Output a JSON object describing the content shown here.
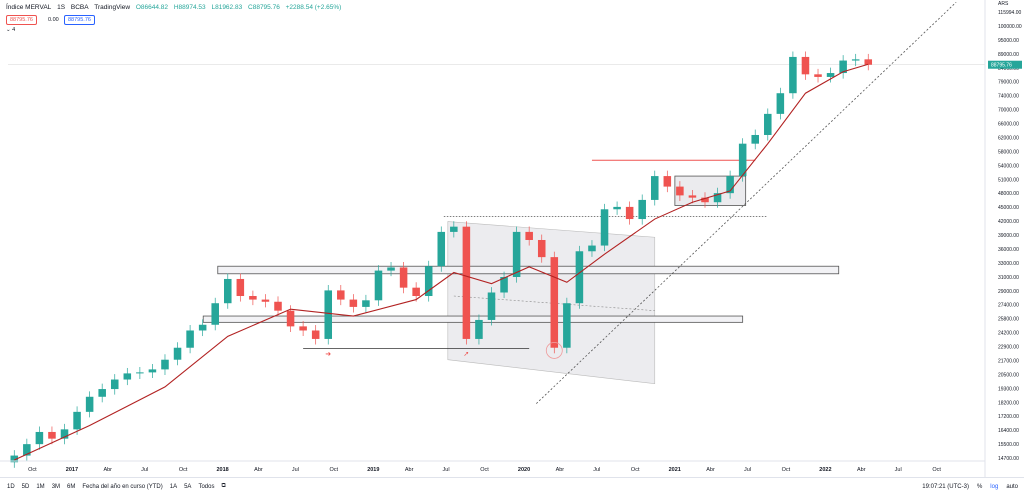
{
  "header": {
    "symbol": "Índice MERVAL",
    "interval": "1S",
    "exchange": "BCBA",
    "source": "TradingView",
    "open": "O86644.82",
    "high": "H88974.53",
    "low": "L81962.83",
    "close": "C88795.76",
    "change": "+2288.54 (+2.65%)",
    "bid": "88795.76",
    "spread": "0.00",
    "ask": "88795.76",
    "indicator_count": "4"
  },
  "price_axis": {
    "top_label": "ARS",
    "last_price_label": "88795.76",
    "labels": [
      "115994.00",
      "100000.00",
      "95000.00",
      "89000.00",
      "84000.00",
      "79000.00",
      "74000.00",
      "70000.00",
      "66000.00",
      "62000.00",
      "58000.00",
      "54000.00",
      "51000.00",
      "48000.00",
      "45000.00",
      "42000.00",
      "39000.00",
      "36000.00",
      "33000.00",
      "31000.00",
      "29000.00",
      "27400.00",
      "25800.00",
      "24200.00",
      "22900.00",
      "21700.00",
      "20500.00",
      "19300.00",
      "18200.00",
      "17200.00",
      "16400.00",
      "15500.00",
      "14700.00"
    ]
  },
  "time_axis": {
    "labels": [
      {
        "t": "Oct",
        "bold": false
      },
      {
        "t": "2017",
        "bold": true
      },
      {
        "t": "Abr",
        "bold": false
      },
      {
        "t": "Jul",
        "bold": false
      },
      {
        "t": "Oct",
        "bold": false
      },
      {
        "t": "2018",
        "bold": true
      },
      {
        "t": "Abr",
        "bold": false
      },
      {
        "t": "Jul",
        "bold": false
      },
      {
        "t": "Oct",
        "bold": false
      },
      {
        "t": "2019",
        "bold": true
      },
      {
        "t": "Abr",
        "bold": false
      },
      {
        "t": "Jul",
        "bold": false
      },
      {
        "t": "Oct",
        "bold": false
      },
      {
        "t": "2020",
        "bold": true
      },
      {
        "t": "Abr",
        "bold": false
      },
      {
        "t": "Jul",
        "bold": false
      },
      {
        "t": "Oct",
        "bold": false
      },
      {
        "t": "2021",
        "bold": true
      },
      {
        "t": "Abr",
        "bold": false
      },
      {
        "t": "Jul",
        "bold": false
      },
      {
        "t": "Oct",
        "bold": false
      },
      {
        "t": "2022",
        "bold": true
      },
      {
        "t": "Abr",
        "bold": false
      },
      {
        "t": "Jul",
        "bold": false
      },
      {
        "t": "Oct",
        "bold": false
      }
    ]
  },
  "bottom_bar": {
    "ranges": [
      "1D",
      "5D",
      "1M",
      "3M",
      "6M",
      "Fecha del año en curso (YTD)",
      "1A",
      "5A",
      "Todos"
    ],
    "clock": "19:07:21 (UTC-3)",
    "percent": "%",
    "log": "log",
    "auto": "auto"
  },
  "colors": {
    "up": "#26a69a",
    "down": "#ef5350",
    "ma": "#b22222",
    "zone_fill": "#e6e6ea",
    "hline": "#ef5350",
    "trend": "#555555"
  },
  "chart_data": {
    "type": "candlestick",
    "scale": "log",
    "x_range": [
      "2016-08",
      "2022-12"
    ],
    "y_range": [
      14700,
      115994
    ],
    "last_price": 88795.76,
    "series": [
      {
        "kind": "candles",
        "points": [
          {
            "x": "2016-08",
            "c": 15000
          },
          {
            "x": "2016-09",
            "c": 15800
          },
          {
            "x": "2016-10",
            "c": 16700
          },
          {
            "x": "2016-11",
            "c": 16200
          },
          {
            "x": "2016-12",
            "c": 16900
          },
          {
            "x": "2017-01",
            "c": 18300
          },
          {
            "x": "2017-02",
            "c": 19600
          },
          {
            "x": "2017-03",
            "c": 20300
          },
          {
            "x": "2017-04",
            "c": 21200
          },
          {
            "x": "2017-05",
            "c": 21800
          },
          {
            "x": "2017-06",
            "c": 21900
          },
          {
            "x": "2017-07",
            "c": 22200
          },
          {
            "x": "2017-08",
            "c": 23200
          },
          {
            "x": "2017-09",
            "c": 24500
          },
          {
            "x": "2017-10",
            "c": 26500
          },
          {
            "x": "2017-11",
            "c": 27200
          },
          {
            "x": "2017-12",
            "c": 30000
          },
          {
            "x": "2018-01",
            "c": 33500
          },
          {
            "x": "2018-02",
            "c": 31000
          },
          {
            "x": "2018-03",
            "c": 30500
          },
          {
            "x": "2018-04",
            "c": 30200
          },
          {
            "x": "2018-05",
            "c": 29000
          },
          {
            "x": "2018-06",
            "c": 27000
          },
          {
            "x": "2018-07",
            "c": 26500
          },
          {
            "x": "2018-08",
            "c": 25500
          },
          {
            "x": "2018-09",
            "c": 31800
          },
          {
            "x": "2018-10",
            "c": 30500
          },
          {
            "x": "2018-11",
            "c": 29500
          },
          {
            "x": "2018-12",
            "c": 30400
          },
          {
            "x": "2019-01",
            "c": 34800
          },
          {
            "x": "2019-02",
            "c": 35300
          },
          {
            "x": "2019-03",
            "c": 32200
          },
          {
            "x": "2019-04",
            "c": 31000
          },
          {
            "x": "2019-05",
            "c": 35500
          },
          {
            "x": "2019-06",
            "c": 41500
          },
          {
            "x": "2019-07",
            "c": 42500
          },
          {
            "x": "2019-08",
            "c": 25500
          },
          {
            "x": "2019-09",
            "c": 27800
          },
          {
            "x": "2019-10",
            "c": 31500
          },
          {
            "x": "2019-11",
            "c": 33800
          },
          {
            "x": "2019-12",
            "c": 41500
          },
          {
            "x": "2020-01",
            "c": 40000
          },
          {
            "x": "2020-02",
            "c": 37000
          },
          {
            "x": "2020-03",
            "c": 24500
          },
          {
            "x": "2020-04",
            "c": 30000
          },
          {
            "x": "2020-05",
            "c": 38000
          },
          {
            "x": "2020-06",
            "c": 39000
          },
          {
            "x": "2020-07",
            "c": 46000
          },
          {
            "x": "2020-08",
            "c": 46500
          },
          {
            "x": "2020-09",
            "c": 44000
          },
          {
            "x": "2020-10",
            "c": 48000
          },
          {
            "x": "2020-11",
            "c": 53500
          },
          {
            "x": "2020-12",
            "c": 51000
          },
          {
            "x": "2021-01",
            "c": 49000
          },
          {
            "x": "2021-02",
            "c": 48500
          },
          {
            "x": "2021-03",
            "c": 47500
          },
          {
            "x": "2021-04",
            "c": 49500
          },
          {
            "x": "2021-05",
            "c": 53500
          },
          {
            "x": "2021-06",
            "c": 62000
          },
          {
            "x": "2021-07",
            "c": 64500
          },
          {
            "x": "2021-08",
            "c": 71000
          },
          {
            "x": "2021-09",
            "c": 78000
          },
          {
            "x": "2021-10",
            "c": 92000
          },
          {
            "x": "2021-11",
            "c": 85000
          },
          {
            "x": "2021-12",
            "c": 84000
          },
          {
            "x": "2022-01",
            "c": 85500
          },
          {
            "x": "2022-02",
            "c": 90500
          },
          {
            "x": "2022-03",
            "c": 91000
          },
          {
            "x": "2022-04",
            "c": 88800
          }
        ]
      },
      {
        "kind": "moving_average",
        "points": [
          {
            "x": "2016-08",
            "y": 14700
          },
          {
            "x": "2017-02",
            "y": 17200
          },
          {
            "x": "2017-08",
            "y": 20500
          },
          {
            "x": "2018-01",
            "y": 25800
          },
          {
            "x": "2018-06",
            "y": 29200
          },
          {
            "x": "2018-11",
            "y": 28300
          },
          {
            "x": "2019-04",
            "y": 30500
          },
          {
            "x": "2019-07",
            "y": 34500
          },
          {
            "x": "2019-10",
            "y": 32800
          },
          {
            "x": "2020-01",
            "y": 35400
          },
          {
            "x": "2020-04",
            "y": 33000
          },
          {
            "x": "2020-07",
            "y": 37500
          },
          {
            "x": "2020-11",
            "y": 44000
          },
          {
            "x": "2021-02",
            "y": 47500
          },
          {
            "x": "2021-05",
            "y": 50000
          },
          {
            "x": "2021-08",
            "y": 62000
          },
          {
            "x": "2021-11",
            "y": 78000
          },
          {
            "x": "2022-02",
            "y": 86000
          },
          {
            "x": "2022-04",
            "y": 89000
          }
        ]
      }
    ]
  }
}
